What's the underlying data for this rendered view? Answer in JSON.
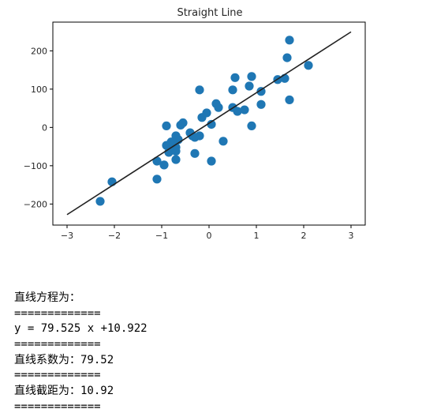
{
  "chart_data": {
    "type": "scatter",
    "title": "Straight Line",
    "xlim": [
      -3.3,
      3.3
    ],
    "ylim": [
      -255,
      275
    ],
    "xticks": [
      -3,
      -2,
      -1,
      0,
      1,
      2,
      3
    ],
    "yticks": [
      -200,
      -100,
      0,
      100,
      200
    ],
    "grid": false,
    "point_color": "#1f77b4",
    "line_color": "#222222",
    "points": [
      [
        -2.3,
        -193
      ],
      [
        -2.05,
        -142
      ],
      [
        -1.1,
        -88
      ],
      [
        -1.1,
        -135
      ],
      [
        -0.95,
        -98
      ],
      [
        -0.9,
        4
      ],
      [
        -0.9,
        -47
      ],
      [
        -0.85,
        -65
      ],
      [
        -0.8,
        -38
      ],
      [
        -0.75,
        -46
      ],
      [
        -0.7,
        -22
      ],
      [
        -0.7,
        -52
      ],
      [
        -0.7,
        -62
      ],
      [
        -0.7,
        -84
      ],
      [
        -0.65,
        -32
      ],
      [
        -0.6,
        6
      ],
      [
        -0.55,
        12
      ],
      [
        -0.4,
        -14
      ],
      [
        -0.35,
        -22
      ],
      [
        -0.3,
        -26
      ],
      [
        -0.3,
        -68
      ],
      [
        -0.2,
        98
      ],
      [
        -0.2,
        -22
      ],
      [
        -0.15,
        26
      ],
      [
        -0.05,
        38
      ],
      [
        0.05,
        8
      ],
      [
        0.05,
        -88
      ],
      [
        0.15,
        62
      ],
      [
        0.2,
        52
      ],
      [
        0.3,
        -36
      ],
      [
        0.5,
        98
      ],
      [
        0.5,
        52
      ],
      [
        0.55,
        130
      ],
      [
        0.6,
        42
      ],
      [
        0.75,
        46
      ],
      [
        0.85,
        108
      ],
      [
        0.9,
        133
      ],
      [
        0.9,
        4
      ],
      [
        1.1,
        60
      ],
      [
        1.1,
        94
      ],
      [
        1.45,
        125
      ],
      [
        1.6,
        128
      ],
      [
        1.65,
        182
      ],
      [
        1.7,
        228
      ],
      [
        1.7,
        72
      ],
      [
        2.1,
        162
      ]
    ],
    "line": {
      "slope": 79.525,
      "intercept": 10.922,
      "x": [
        -3,
        3
      ]
    }
  },
  "console": {
    "lines": [
      "直线方程为：",
      "=============",
      "y = 79.525 x +10.922",
      "=============",
      "直线系数为：79.52",
      "=============",
      "直线截距为：10.92",
      "============="
    ]
  }
}
